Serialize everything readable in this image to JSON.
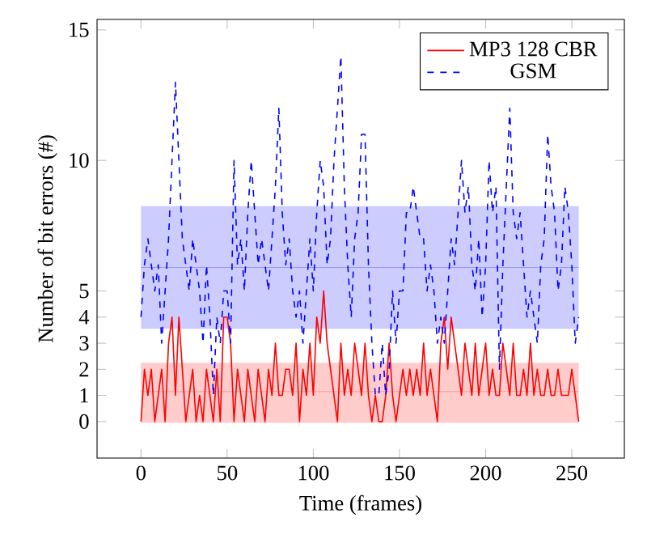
{
  "chart_data": {
    "type": "line",
    "xlabel": "Time (frames)",
    "ylabel": "Number of bit errors (#)",
    "xlim": [
      -25.5,
      280.5
    ],
    "ylim": [
      -1.4,
      15.4
    ],
    "xticks": [
      0,
      50,
      100,
      150,
      200,
      250
    ],
    "yticks": [
      0,
      1,
      2,
      3,
      4,
      5,
      10,
      15
    ],
    "legend": "top right",
    "marker": "none",
    "grid": false,
    "bands": [
      {
        "axis": "y",
        "from": -0.05,
        "to": 2.25,
        "color": "#ffcccc"
      },
      {
        "axis": "y",
        "from": 3.55,
        "to": 8.25,
        "color": "#ccccff"
      }
    ],
    "ref_lines": [
      {
        "axis": "y",
        "value": 1.15,
        "color": "#ff9999"
      },
      {
        "axis": "y",
        "value": 5.9,
        "color": "#9999ff"
      }
    ],
    "x": [
      0,
      2,
      4,
      6,
      8,
      10,
      12,
      14,
      16,
      18,
      20,
      22,
      24,
      26,
      28,
      30,
      32,
      34,
      36,
      38,
      40,
      42,
      44,
      46,
      48,
      50,
      52,
      54,
      56,
      58,
      60,
      62,
      64,
      66,
      68,
      70,
      72,
      74,
      76,
      78,
      80,
      82,
      84,
      86,
      88,
      90,
      92,
      94,
      96,
      98,
      100,
      102,
      104,
      106,
      108,
      110,
      112,
      114,
      116,
      118,
      120,
      122,
      124,
      126,
      128,
      130,
      132,
      134,
      136,
      138,
      140,
      142,
      144,
      146,
      148,
      150,
      152,
      154,
      156,
      158,
      160,
      162,
      164,
      166,
      168,
      170,
      172,
      174,
      176,
      178,
      180,
      182,
      184,
      186,
      188,
      190,
      192,
      194,
      196,
      198,
      200,
      202,
      204,
      206,
      208,
      210,
      212,
      214,
      216,
      218,
      220,
      222,
      224,
      226,
      228,
      230,
      232,
      234,
      236,
      238,
      240,
      242,
      244,
      246,
      248,
      250,
      252,
      254
    ],
    "series": [
      {
        "name": "MP3 128 CBR",
        "color": "#ff0000",
        "line_style": "solid",
        "values": [
          0,
          2,
          1,
          2,
          0,
          1,
          2,
          0,
          3,
          4,
          1,
          4,
          2,
          0,
          1,
          2,
          0,
          1,
          0,
          2,
          1,
          0,
          2,
          0,
          4,
          4,
          3,
          0,
          2,
          1,
          0,
          2,
          1,
          0,
          2,
          1,
          0,
          2,
          1,
          3,
          1,
          1,
          2,
          2,
          1,
          3,
          0,
          2,
          1,
          3,
          1,
          4,
          3,
          5,
          3,
          2,
          1,
          0,
          3,
          1,
          2,
          1,
          3,
          2,
          1,
          3,
          1,
          0,
          1,
          0,
          0,
          1,
          3,
          1,
          0,
          1,
          2,
          1,
          2,
          1,
          2,
          1,
          3,
          1,
          2,
          1,
          0,
          3,
          4,
          2,
          4,
          3,
          2,
          1,
          3,
          2,
          1,
          3,
          1,
          2,
          3,
          1,
          2,
          1,
          1,
          3,
          2,
          1,
          3,
          1,
          1,
          2,
          1,
          3,
          1,
          2,
          1,
          1,
          2,
          1,
          1,
          2,
          1,
          1,
          1,
          2,
          1,
          0
        ]
      },
      {
        "name": "GSM",
        "color": "#0000ff",
        "line_style": "dashed",
        "values": [
          4,
          6,
          7,
          6,
          5,
          6,
          3,
          5,
          7,
          10,
          13,
          10,
          7,
          6,
          5,
          7,
          6,
          5,
          3,
          6,
          4,
          1,
          4,
          3,
          5,
          5,
          3,
          10,
          6,
          7,
          5,
          8,
          10,
          8,
          6,
          7,
          6,
          5,
          7,
          9,
          12,
          8,
          6,
          7,
          5,
          4,
          5,
          3,
          5,
          7,
          5,
          8,
          10,
          9,
          6,
          7,
          10,
          12,
          14,
          9,
          6,
          4,
          7,
          8,
          11,
          11,
          6,
          3,
          1,
          1,
          3,
          1,
          2,
          5,
          3,
          5,
          5,
          8,
          8,
          9,
          8,
          7,
          7,
          5,
          6,
          5,
          3,
          4,
          3,
          5,
          7,
          6,
          8,
          10,
          8,
          9,
          6,
          5,
          7,
          4,
          6,
          10,
          8,
          9,
          2,
          6,
          9,
          12,
          8,
          7,
          8,
          6,
          4,
          5,
          4,
          3,
          6,
          7,
          11,
          9,
          8,
          5,
          6,
          9,
          8,
          6,
          3,
          4
        ]
      }
    ]
  }
}
